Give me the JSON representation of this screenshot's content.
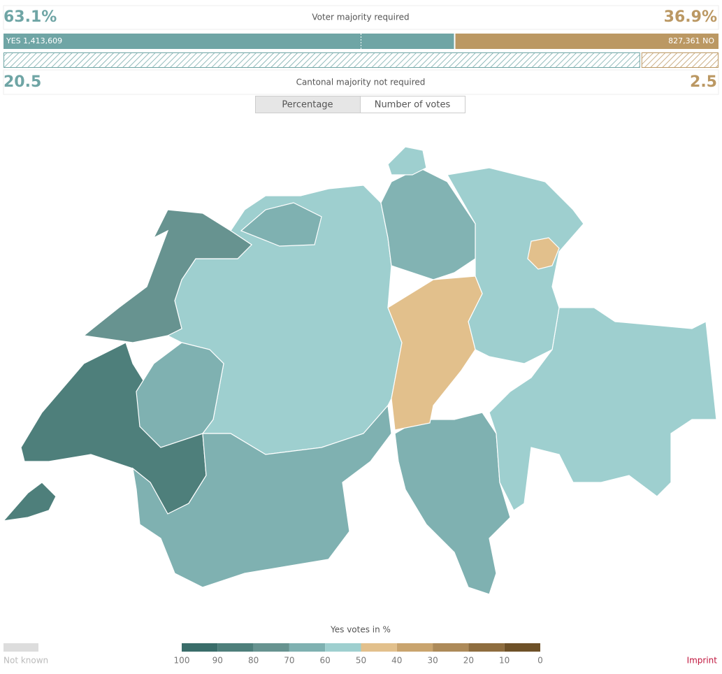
{
  "popular_vote": {
    "yes_percent": 63.1,
    "yes_percent_label": "63.1%",
    "no_percent": 36.9,
    "no_percent_label": "36.9%",
    "label": "Voter majority required",
    "yes_votes": 1413609,
    "yes_votes_label": "YES 1,413,609",
    "no_votes": 827361,
    "no_votes_label": "827,361 NO",
    "yes_color": "#6fa5a5",
    "no_color": "#bb9863"
  },
  "cantonal_vote": {
    "yes": 20.5,
    "no": 2.5,
    "label": "Cantonal majority not required"
  },
  "toggle": {
    "options": [
      "Percentage",
      "Number of votes"
    ],
    "selected": 0
  },
  "legend": {
    "title": "Yes votes in %",
    "ticks": [
      100,
      90,
      80,
      70,
      60,
      50,
      40,
      30,
      20,
      10,
      0
    ],
    "colors": [
      "#3a6d6a",
      "#4e7f7b",
      "#679390",
      "#7fb1b1",
      "#9ecfcf",
      "#e2c08c",
      "#c9a46e",
      "#ad8a59",
      "#8e6d3f",
      "#6e5128"
    ],
    "not_known": "Not known",
    "not_known_color": "#dddddd"
  },
  "footer": {
    "imprint": "Imprint"
  }
}
